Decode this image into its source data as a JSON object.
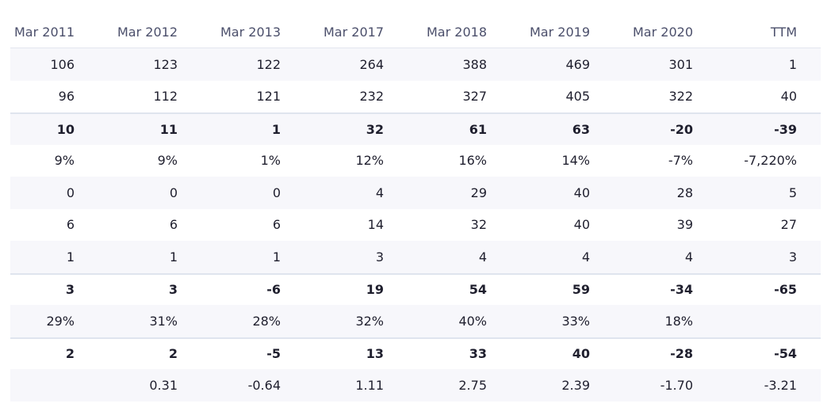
{
  "headers": [
    "Mar 2011",
    "Mar 2012",
    "Mar 2013",
    "Mar 2017",
    "Mar 2018",
    "Mar 2019",
    "Mar 2020",
    "TTM"
  ],
  "rows": [
    {
      "bold": false,
      "shade": true,
      "topline": false,
      "values": [
        "106",
        "123",
        "122",
        "264",
        "388",
        "469",
        "301",
        "1"
      ]
    },
    {
      "bold": false,
      "shade": false,
      "topline": false,
      "values": [
        "96",
        "112",
        "121",
        "232",
        "327",
        "405",
        "322",
        "40"
      ]
    },
    {
      "bold": true,
      "shade": true,
      "topline": true,
      "values": [
        "10",
        "11",
        "1",
        "32",
        "61",
        "63",
        "-20",
        "-39"
      ]
    },
    {
      "bold": false,
      "shade": false,
      "topline": false,
      "values": [
        "9%",
        "9%",
        "1%",
        "12%",
        "16%",
        "14%",
        "-7%",
        "-7,220%"
      ]
    },
    {
      "bold": false,
      "shade": true,
      "topline": false,
      "values": [
        "0",
        "0",
        "0",
        "4",
        "29",
        "40",
        "28",
        "5"
      ]
    },
    {
      "bold": false,
      "shade": false,
      "topline": false,
      "values": [
        "6",
        "6",
        "6",
        "14",
        "32",
        "40",
        "39",
        "27"
      ]
    },
    {
      "bold": false,
      "shade": true,
      "topline": false,
      "values": [
        "1",
        "1",
        "1",
        "3",
        "4",
        "4",
        "4",
        "3"
      ]
    },
    {
      "bold": true,
      "shade": false,
      "topline": true,
      "values": [
        "3",
        "3",
        "-6",
        "19",
        "54",
        "59",
        "-34",
        "-65"
      ]
    },
    {
      "bold": false,
      "shade": true,
      "topline": false,
      "values": [
        "29%",
        "31%",
        "28%",
        "32%",
        "40%",
        "33%",
        "18%",
        ""
      ]
    },
    {
      "bold": true,
      "shade": false,
      "topline": true,
      "values": [
        "2",
        "2",
        "-5",
        "13",
        "33",
        "40",
        "-28",
        "-54"
      ]
    },
    {
      "bold": false,
      "shade": true,
      "topline": false,
      "values": [
        "",
        "0.31",
        "-0.64",
        "1.11",
        "2.75",
        "2.39",
        "-1.70",
        "-3.21"
      ]
    }
  ]
}
